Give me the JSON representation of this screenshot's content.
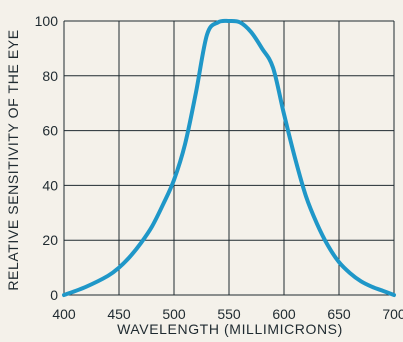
{
  "chart_data": {
    "type": "line",
    "xlabel": "WAVELENGTH (MILLIMICRONS)",
    "ylabel": "RELATIVE SENSITIVITY OF THE EYE",
    "xlim": [
      400,
      700
    ],
    "ylim": [
      0,
      100
    ],
    "x_ticks": [
      400,
      450,
      500,
      550,
      600,
      650,
      700
    ],
    "y_ticks": [
      0,
      20,
      40,
      60,
      80,
      100
    ],
    "grid": true,
    "series": [
      {
        "x": [
          400,
          420,
          440,
          450,
          460,
          470,
          480,
          490,
          500,
          510,
          520,
          530,
          540,
          550,
          560,
          570,
          580,
          590,
          600,
          610,
          620,
          630,
          640,
          650,
          660,
          670,
          680,
          690,
          700
        ],
        "y": [
          0,
          3,
          7,
          10,
          14,
          19,
          25,
          33,
          42,
          55,
          74,
          95,
          99.5,
          100,
          99.5,
          96,
          90,
          83,
          66,
          50,
          36,
          26,
          18,
          12,
          8,
          5,
          3,
          1.5,
          0
        ]
      }
    ],
    "colors": {
      "line": "#1f97c8",
      "grid": "#1f2a30",
      "text": "#1f2a30"
    }
  }
}
